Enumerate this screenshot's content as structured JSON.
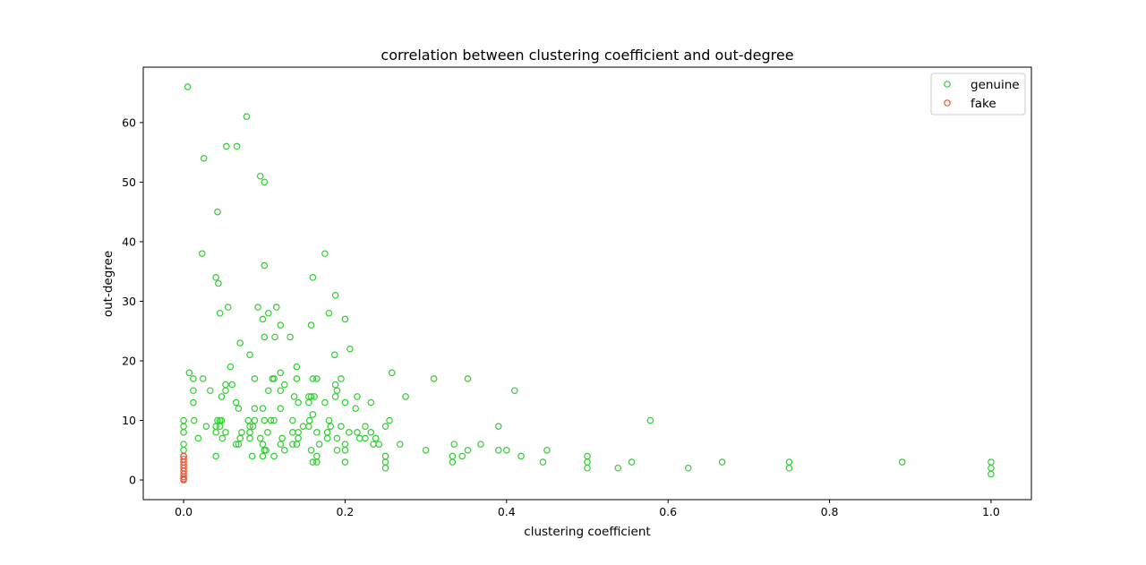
{
  "chart_data": {
    "type": "scatter",
    "title": "correlation between clustering coefficient and out-degree",
    "xlabel": "clustering coefficient",
    "ylabel": "out-degree",
    "xlim": [
      -0.05,
      1.05
    ],
    "ylim": [
      -3.3,
      69.3
    ],
    "x_ticks": [
      0.0,
      0.2,
      0.4,
      0.6,
      0.8,
      1.0
    ],
    "x_tick_labels": [
      "0.0",
      "0.2",
      "0.4",
      "0.6",
      "0.8",
      "1.0"
    ],
    "y_ticks": [
      0,
      10,
      20,
      30,
      40,
      50,
      60
    ],
    "y_tick_labels": [
      "0",
      "10",
      "20",
      "30",
      "40",
      "50",
      "60"
    ],
    "grid": false,
    "legend_position": "top-right",
    "series": [
      {
        "name": "genuine",
        "color": "#33cc33",
        "marker": "hollow-circle",
        "points": [
          [
            0.005,
            66
          ],
          [
            0.078,
            61
          ],
          [
            0.053,
            56
          ],
          [
            0.066,
            56
          ],
          [
            0.025,
            54
          ],
          [
            0.095,
            51
          ],
          [
            0.1,
            50
          ],
          [
            0.042,
            45
          ],
          [
            0.023,
            38
          ],
          [
            0.175,
            38
          ],
          [
            0.1,
            36
          ],
          [
            0.04,
            34
          ],
          [
            0.16,
            34
          ],
          [
            0.043,
            33
          ],
          [
            0.188,
            31
          ],
          [
            0.055,
            29
          ],
          [
            0.092,
            29
          ],
          [
            0.115,
            29
          ],
          [
            0.045,
            28
          ],
          [
            0.105,
            28
          ],
          [
            0.18,
            28
          ],
          [
            0.098,
            27
          ],
          [
            0.2,
            27
          ],
          [
            0.12,
            26
          ],
          [
            0.158,
            26
          ],
          [
            0.1,
            24
          ],
          [
            0.113,
            24
          ],
          [
            0.132,
            24
          ],
          [
            0.07,
            23
          ],
          [
            0.206,
            22
          ],
          [
            0.082,
            21
          ],
          [
            0.187,
            21
          ],
          [
            0.058,
            19
          ],
          [
            0.14,
            19
          ],
          [
            0.007,
            18
          ],
          [
            0.12,
            18
          ],
          [
            0.258,
            18
          ],
          [
            0.012,
            17
          ],
          [
            0.024,
            17
          ],
          [
            0.088,
            17
          ],
          [
            0.11,
            17
          ],
          [
            0.112,
            17
          ],
          [
            0.14,
            17
          ],
          [
            0.16,
            17
          ],
          [
            0.165,
            17
          ],
          [
            0.195,
            17
          ],
          [
            0.31,
            17
          ],
          [
            0.352,
            17
          ],
          [
            0.052,
            16
          ],
          [
            0.06,
            16
          ],
          [
            0.125,
            16
          ],
          [
            0.188,
            16
          ],
          [
            0.012,
            15
          ],
          [
            0.033,
            15
          ],
          [
            0.052,
            15
          ],
          [
            0.105,
            15
          ],
          [
            0.12,
            15
          ],
          [
            0.19,
            15
          ],
          [
            0.41,
            15
          ],
          [
            0.047,
            14
          ],
          [
            0.137,
            14
          ],
          [
            0.155,
            14
          ],
          [
            0.158,
            14
          ],
          [
            0.162,
            14
          ],
          [
            0.188,
            14
          ],
          [
            0.215,
            14
          ],
          [
            0.275,
            14
          ],
          [
            0.012,
            13
          ],
          [
            0.065,
            13
          ],
          [
            0.142,
            13
          ],
          [
            0.155,
            13
          ],
          [
            0.175,
            13
          ],
          [
            0.2,
            13
          ],
          [
            0.232,
            13
          ],
          [
            0.068,
            12
          ],
          [
            0.088,
            12
          ],
          [
            0.098,
            12
          ],
          [
            0.12,
            12
          ],
          [
            0.213,
            12
          ],
          [
            0.16,
            11
          ],
          [
            0.0,
            10
          ],
          [
            0.013,
            10
          ],
          [
            0.042,
            10
          ],
          [
            0.045,
            10
          ],
          [
            0.047,
            10
          ],
          [
            0.08,
            10
          ],
          [
            0.088,
            10
          ],
          [
            0.1,
            10
          ],
          [
            0.108,
            10
          ],
          [
            0.112,
            10
          ],
          [
            0.135,
            10
          ],
          [
            0.156,
            10
          ],
          [
            0.18,
            10
          ],
          [
            0.255,
            10
          ],
          [
            0.578,
            10
          ],
          [
            0.0,
            9
          ],
          [
            0.028,
            9
          ],
          [
            0.04,
            9
          ],
          [
            0.045,
            9
          ],
          [
            0.082,
            9
          ],
          [
            0.086,
            9
          ],
          [
            0.148,
            9
          ],
          [
            0.155,
            9
          ],
          [
            0.182,
            9
          ],
          [
            0.195,
            9
          ],
          [
            0.225,
            9
          ],
          [
            0.25,
            9
          ],
          [
            0.39,
            9
          ],
          [
            0.0,
            8
          ],
          [
            0.04,
            8
          ],
          [
            0.052,
            8
          ],
          [
            0.072,
            8
          ],
          [
            0.082,
            8
          ],
          [
            0.104,
            8
          ],
          [
            0.135,
            8
          ],
          [
            0.142,
            8
          ],
          [
            0.165,
            8
          ],
          [
            0.178,
            8
          ],
          [
            0.205,
            8
          ],
          [
            0.215,
            8
          ],
          [
            0.232,
            8
          ],
          [
            0.018,
            7
          ],
          [
            0.048,
            7
          ],
          [
            0.07,
            7
          ],
          [
            0.082,
            7
          ],
          [
            0.095,
            7
          ],
          [
            0.122,
            7
          ],
          [
            0.142,
            7
          ],
          [
            0.178,
            7
          ],
          [
            0.19,
            7
          ],
          [
            0.218,
            7
          ],
          [
            0.225,
            7
          ],
          [
            0.238,
            7
          ],
          [
            0.0,
            6
          ],
          [
            0.065,
            6
          ],
          [
            0.068,
            6
          ],
          [
            0.098,
            6
          ],
          [
            0.12,
            6
          ],
          [
            0.135,
            6
          ],
          [
            0.14,
            6
          ],
          [
            0.168,
            6
          ],
          [
            0.2,
            6
          ],
          [
            0.235,
            6
          ],
          [
            0.242,
            6
          ],
          [
            0.268,
            6
          ],
          [
            0.335,
            6
          ],
          [
            0.368,
            6
          ],
          [
            0.0,
            5
          ],
          [
            0.1,
            5
          ],
          [
            0.102,
            5
          ],
          [
            0.125,
            5
          ],
          [
            0.158,
            5
          ],
          [
            0.19,
            5
          ],
          [
            0.2,
            5
          ],
          [
            0.3,
            5
          ],
          [
            0.352,
            5
          ],
          [
            0.39,
            5
          ],
          [
            0.4,
            5
          ],
          [
            0.45,
            5
          ],
          [
            0.0,
            4
          ],
          [
            0.04,
            4
          ],
          [
            0.085,
            4
          ],
          [
            0.098,
            4
          ],
          [
            0.112,
            4
          ],
          [
            0.165,
            4
          ],
          [
            0.25,
            4
          ],
          [
            0.333,
            4
          ],
          [
            0.345,
            4
          ],
          [
            0.418,
            4
          ],
          [
            0.5,
            4
          ],
          [
            0.16,
            3
          ],
          [
            0.165,
            3
          ],
          [
            0.2,
            3
          ],
          [
            0.25,
            3
          ],
          [
            0.333,
            3
          ],
          [
            0.445,
            3
          ],
          [
            0.5,
            3
          ],
          [
            0.555,
            3
          ],
          [
            0.667,
            3
          ],
          [
            0.75,
            3
          ],
          [
            0.89,
            3
          ],
          [
            1.0,
            3
          ],
          [
            0.25,
            2
          ],
          [
            0.5,
            2
          ],
          [
            0.538,
            2
          ],
          [
            0.625,
            2
          ],
          [
            0.75,
            2
          ],
          [
            1.0,
            2
          ],
          [
            1.0,
            1
          ]
        ]
      },
      {
        "name": "fake",
        "color": "#ee5533",
        "marker": "hollow-circle",
        "points": [
          [
            0.0,
            4
          ],
          [
            0.0,
            3.5
          ],
          [
            0.0,
            3
          ],
          [
            0.0,
            2.5
          ],
          [
            0.0,
            2
          ],
          [
            0.0,
            1.5
          ],
          [
            0.0,
            1
          ],
          [
            0.0,
            0.5
          ],
          [
            0.0,
            0.2
          ],
          [
            0.0,
            0
          ]
        ]
      }
    ]
  }
}
